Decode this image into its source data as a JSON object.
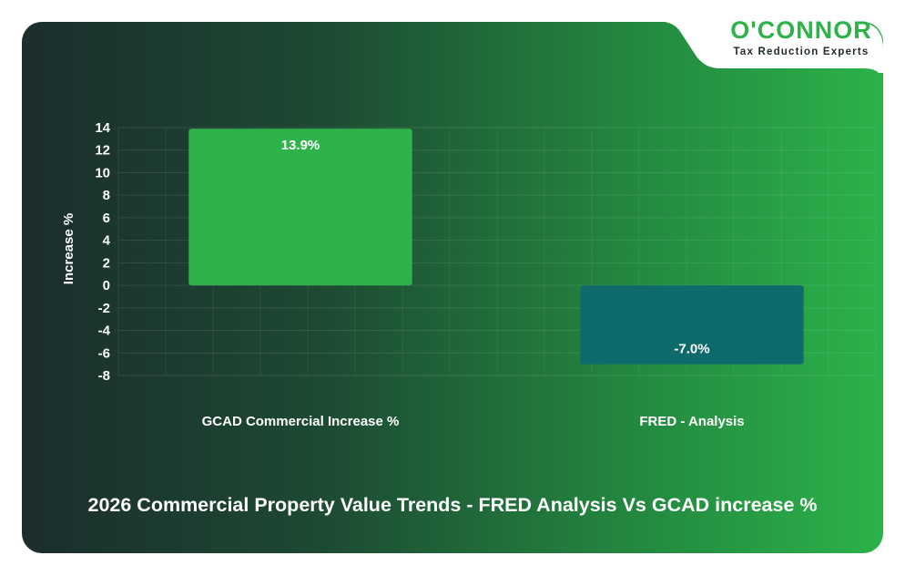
{
  "brand": {
    "name": "O'CONNOR",
    "tagline": "Tax Reduction Experts",
    "color": "#2db34a"
  },
  "chart_data": {
    "type": "bar",
    "title": "2026 Commercial Property Value Trends - FRED Analysis Vs GCAD increase %",
    "xlabel": "",
    "ylabel": "Increase %",
    "categories": [
      "GCAD Commercial Increase %",
      "FRED - Analysis"
    ],
    "values": [
      13.9,
      -7.0
    ],
    "data_labels": [
      "13.9%",
      "-7.0%"
    ],
    "bar_colors": [
      "#2db34a",
      "#0f6b6b"
    ],
    "ylim": [
      -8,
      14
    ],
    "yticks": [
      14,
      12,
      10,
      8,
      6,
      4,
      2,
      0,
      -2,
      -4,
      -6,
      -8
    ],
    "grid": true,
    "legend": "none"
  }
}
